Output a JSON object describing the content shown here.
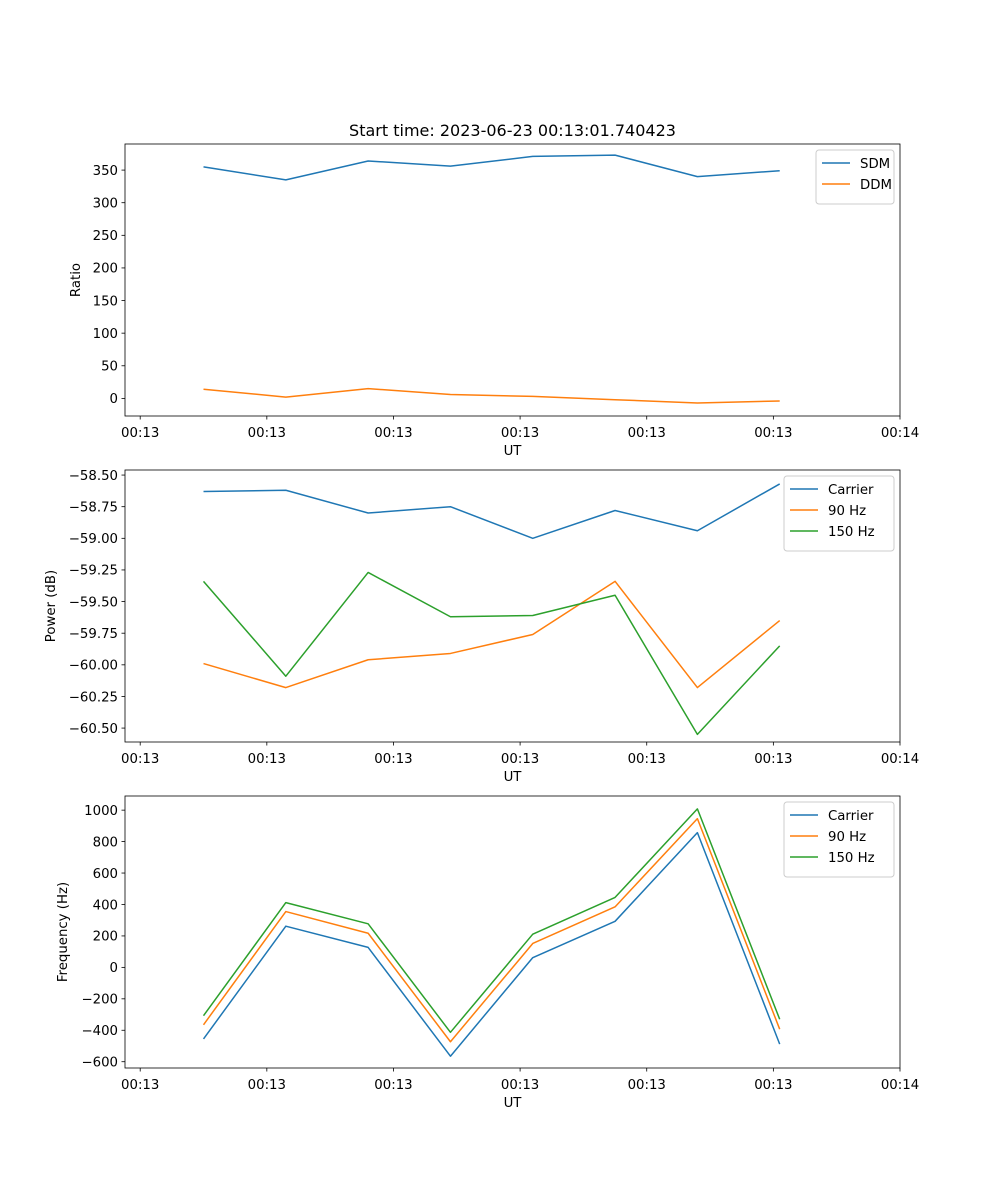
{
  "title": "Start time: 2023-06-23 00:13:01.740423",
  "chart_data": [
    {
      "type": "line",
      "title": "Start time: 2023-06-23 00:13:01.740423",
      "xlabel": "UT",
      "ylabel": "Ratio",
      "x_ticks": [
        0,
        1,
        2,
        3,
        4,
        5,
        6
      ],
      "x_tick_labels": [
        "00:13",
        "00:13",
        "00:13",
        "00:13",
        "00:13",
        "00:13",
        "00:14"
      ],
      "xlim": [
        -0.12,
        6.0
      ],
      "x": [
        0.5,
        1.15,
        1.8,
        2.45,
        3.1,
        3.75,
        4.4,
        5.05
      ],
      "ylim": [
        -27,
        390
      ],
      "y_ticks": [
        0,
        50,
        100,
        150,
        200,
        250,
        300,
        350
      ],
      "series": [
        {
          "name": "SDM",
          "color": "#1f77b4",
          "values": [
            355,
            335,
            364,
            356,
            371,
            373,
            340,
            349
          ]
        },
        {
          "name": "DDM",
          "color": "#ff7f0e",
          "values": [
            14,
            2,
            15,
            6,
            3,
            -2,
            -7,
            -4
          ]
        }
      ],
      "legend": "top-right",
      "grid": false
    },
    {
      "type": "line",
      "title": "",
      "xlabel": "UT",
      "ylabel": "Power (dB)",
      "x_ticks": [
        0,
        1,
        2,
        3,
        4,
        5,
        6
      ],
      "x_tick_labels": [
        "00:13",
        "00:13",
        "00:13",
        "00:13",
        "00:13",
        "00:13",
        "00:14"
      ],
      "xlim": [
        -0.12,
        6.0
      ],
      "x": [
        0.5,
        1.15,
        1.8,
        2.45,
        3.1,
        3.75,
        4.4,
        5.05
      ],
      "ylim": [
        -60.61,
        -58.46
      ],
      "y_ticks": [
        -60.5,
        -60.25,
        -60.0,
        -59.75,
        -59.5,
        -59.25,
        -59.0,
        -58.75,
        -58.5
      ],
      "y_tick_labels": [
        "−60.50",
        "−60.25",
        "−60.00",
        "−59.75",
        "−59.50",
        "−59.25",
        "−59.00",
        "−58.75",
        "−58.50"
      ],
      "series": [
        {
          "name": "Carrier",
          "color": "#1f77b4",
          "values": [
            -58.63,
            -58.62,
            -58.8,
            -58.75,
            -59.0,
            -58.78,
            -58.94,
            -58.57
          ]
        },
        {
          "name": "90 Hz",
          "color": "#ff7f0e",
          "values": [
            -59.99,
            -60.18,
            -59.96,
            -59.91,
            -59.76,
            -59.34,
            -60.18,
            -59.65
          ]
        },
        {
          "name": "150 Hz",
          "color": "#2ca02c",
          "values": [
            -59.34,
            -60.09,
            -59.27,
            -59.62,
            -59.61,
            -59.45,
            -60.55,
            -59.85
          ]
        }
      ],
      "legend": "top-right",
      "grid": false
    },
    {
      "type": "line",
      "title": "",
      "xlabel": "UT",
      "ylabel": "Frequency (Hz)",
      "x_ticks": [
        0,
        1,
        2,
        3,
        4,
        5,
        6
      ],
      "x_tick_labels": [
        "00:13",
        "00:13",
        "00:13",
        "00:13",
        "00:13",
        "00:13",
        "00:14"
      ],
      "xlim": [
        -0.12,
        6.0
      ],
      "x": [
        0.5,
        1.15,
        1.8,
        2.45,
        3.1,
        3.75,
        4.4,
        5.05
      ],
      "ylim": [
        -640,
        1090
      ],
      "y_ticks": [
        -600,
        -400,
        -200,
        0,
        200,
        400,
        600,
        800,
        1000
      ],
      "y_tick_labels": [
        "−600",
        "−400",
        "−200",
        "0",
        "200",
        "400",
        "600",
        "800",
        "1000"
      ],
      "series": [
        {
          "name": "Carrier",
          "color": "#1f77b4",
          "values": [
            -455,
            262,
            127,
            -565,
            62,
            293,
            857,
            -488
          ]
        },
        {
          "name": "90 Hz",
          "color": "#ff7f0e",
          "values": [
            -365,
            355,
            217,
            -473,
            152,
            385,
            946,
            -393
          ]
        },
        {
          "name": "150 Hz",
          "color": "#2ca02c",
          "values": [
            -307,
            412,
            277,
            -413,
            211,
            445,
            1008,
            -330
          ]
        }
      ],
      "legend": "top-right",
      "grid": false
    }
  ]
}
